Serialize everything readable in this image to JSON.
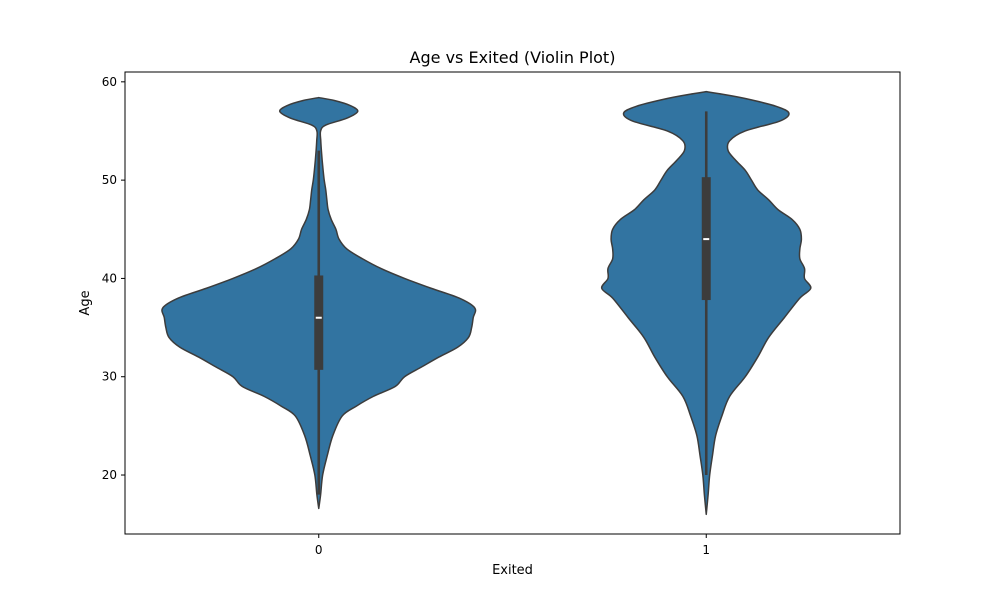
{
  "chart_data": {
    "type": "violin",
    "title": "Age vs Exited (Violin Plot)",
    "xlabel": "Exited",
    "ylabel": "Age",
    "categories": [
      "0",
      "1"
    ],
    "ylim": [
      14,
      61
    ],
    "yticks": [
      20,
      30,
      40,
      50,
      60
    ],
    "grid": false,
    "colors": {
      "fill": "#3274a1",
      "outline": "#3c3c3c",
      "box": "#3c3c3c",
      "median": "#ffffff"
    },
    "violins": [
      {
        "category": "0",
        "profile": [
          [
            16.6,
            0.0
          ],
          [
            18,
            0.012
          ],
          [
            20,
            0.025
          ],
          [
            22,
            0.055
          ],
          [
            24,
            0.09
          ],
          [
            26,
            0.15
          ],
          [
            27,
            0.24
          ],
          [
            28,
            0.35
          ],
          [
            29,
            0.49
          ],
          [
            30,
            0.55
          ],
          [
            31,
            0.66
          ],
          [
            32,
            0.77
          ],
          [
            33,
            0.89
          ],
          [
            34,
            0.96
          ],
          [
            35,
            0.98
          ],
          [
            36,
            0.99
          ],
          [
            37,
            1.0
          ],
          [
            38,
            0.9
          ],
          [
            39,
            0.72
          ],
          [
            40,
            0.55
          ],
          [
            41,
            0.4
          ],
          [
            42,
            0.28
          ],
          [
            43,
            0.18
          ],
          [
            44,
            0.13
          ],
          [
            45,
            0.11
          ],
          [
            46,
            0.08
          ],
          [
            47,
            0.06
          ],
          [
            48,
            0.052
          ],
          [
            49,
            0.045
          ],
          [
            50,
            0.035
          ],
          [
            51,
            0.028
          ],
          [
            52,
            0.022
          ],
          [
            53,
            0.017
          ],
          [
            54,
            0.013
          ],
          [
            55,
            0.012
          ],
          [
            55.6,
            0.045
          ],
          [
            56.3,
            0.18
          ],
          [
            57.0,
            0.25
          ],
          [
            57.6,
            0.2
          ],
          [
            58.1,
            0.1
          ],
          [
            58.4,
            0.0
          ]
        ],
        "q1": 30.7,
        "median": 36,
        "q3": 40.3,
        "whisker_low": 18,
        "whisker_high": 53
      },
      {
        "category": "1",
        "profile": [
          [
            16.0,
            0.0
          ],
          [
            18,
            0.012
          ],
          [
            20,
            0.022
          ],
          [
            22,
            0.04
          ],
          [
            24,
            0.06
          ],
          [
            26,
            0.1
          ],
          [
            28,
            0.15
          ],
          [
            30,
            0.25
          ],
          [
            32,
            0.33
          ],
          [
            34,
            0.4
          ],
          [
            36,
            0.5
          ],
          [
            38,
            0.6
          ],
          [
            39,
            0.67
          ],
          [
            40,
            0.63
          ],
          [
            41,
            0.63
          ],
          [
            42,
            0.6
          ],
          [
            43,
            0.6
          ],
          [
            44,
            0.61
          ],
          [
            45,
            0.6
          ],
          [
            46,
            0.55
          ],
          [
            47,
            0.46
          ],
          [
            48,
            0.4
          ],
          [
            49,
            0.33
          ],
          [
            50,
            0.29
          ],
          [
            51,
            0.25
          ],
          [
            52,
            0.19
          ],
          [
            53,
            0.14
          ],
          [
            54,
            0.15
          ],
          [
            55,
            0.25
          ],
          [
            56,
            0.47
          ],
          [
            56.8,
            0.53
          ],
          [
            57.5,
            0.45
          ],
          [
            58.3,
            0.25
          ],
          [
            58.8,
            0.08
          ],
          [
            59.0,
            0.0
          ]
        ],
        "q1": 37.8,
        "median": 44,
        "q3": 50.3,
        "whisker_low": 20,
        "whisker_high": 57
      }
    ]
  }
}
